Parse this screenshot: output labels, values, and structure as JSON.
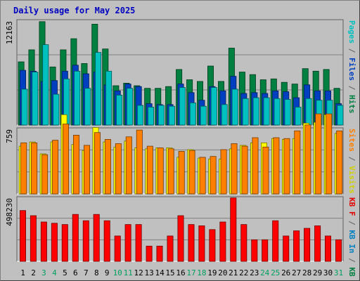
{
  "chart_data": [
    {
      "type": "bar",
      "title": "Daily usage for May 2025",
      "ymax_label": "12163",
      "right_label": [
        {
          "text": "Pages",
          "color": "#00c0c0"
        },
        {
          "text": " / ",
          "color": "#606060"
        },
        {
          "text": "Files",
          "color": "#0040c0"
        },
        {
          "text": " / ",
          "color": "#606060"
        },
        {
          "text": "Hits",
          "color": "#008040"
        }
      ],
      "categories": [
        "1",
        "2",
        "3",
        "4",
        "5",
        "6",
        "7",
        "8",
        "9",
        "10",
        "11",
        "12",
        "13",
        "14",
        "15",
        "16",
        "17",
        "18",
        "19",
        "20",
        "21",
        "22",
        "23",
        "24",
        "25",
        "26",
        "27",
        "28",
        "29",
        "30",
        "31"
      ],
      "weekend_days": [
        3,
        4,
        10,
        11,
        17,
        18,
        24,
        25,
        31
      ],
      "series": [
        {
          "name": "Hits",
          "color": "#008040",
          "values": [
            7400,
            8800,
            12100,
            6800,
            8800,
            10100,
            7200,
            11800,
            8900,
            4600,
            4900,
            4600,
            4300,
            4300,
            4500,
            6500,
            5300,
            5100,
            6900,
            5100,
            9000,
            6200,
            5900,
            5300,
            5400,
            5000,
            4800,
            6600,
            6300,
            6500,
            4300
          ]
        },
        {
          "name": "Files",
          "color": "#0040c0",
          "values": [
            6400,
            6300,
            5100,
            5200,
            6300,
            7000,
            6000,
            6200,
            4700,
            4000,
            4800,
            4500,
            2500,
            2400,
            2400,
            4800,
            3800,
            2900,
            4500,
            4000,
            5700,
            3700,
            3800,
            3700,
            4000,
            3900,
            3200,
            4700,
            4000,
            4000,
            2500
          ]
        },
        {
          "name": "Pages",
          "color": "#00c0c0",
          "values": [
            4200,
            6200,
            9400,
            3600,
            5400,
            6300,
            4300,
            8500,
            6300,
            3500,
            4300,
            2300,
            2100,
            2300,
            2200,
            4400,
            2600,
            2200,
            4400,
            2400,
            4200,
            3100,
            3200,
            3200,
            3100,
            3000,
            2100,
            3100,
            2900,
            2900,
            2300
          ]
        }
      ]
    },
    {
      "type": "bar",
      "ymax_label": "759",
      "right_label": [
        {
          "text": "Sites",
          "color": "#ff8000"
        },
        {
          "text": " / ",
          "color": "#606060"
        },
        {
          "text": "Visits",
          "color": "#d0d000"
        }
      ],
      "series": [
        {
          "name": "Visits",
          "color": "#ffff00",
          "values": [
            560,
            610,
            470,
            610,
            930,
            580,
            510,
            780,
            610,
            550,
            620,
            540,
            530,
            540,
            540,
            430,
            520,
            420,
            410,
            410,
            530,
            570,
            600,
            600,
            650,
            640,
            650,
            830,
            840,
            930,
            710
          ]
        },
        {
          "name": "Sites",
          "color": "#ff8000",
          "values": [
            600,
            600,
            460,
            630,
            820,
            690,
            570,
            720,
            640,
            590,
            670,
            750,
            560,
            540,
            530,
            500,
            510,
            430,
            440,
            520,
            590,
            560,
            660,
            550,
            660,
            650,
            740,
            810,
            940,
            940,
            740
          ]
        }
      ]
    },
    {
      "type": "bar",
      "ymax_label": "498230",
      "right_label": [
        {
          "text": "KB F",
          "color": "#e00000"
        },
        {
          "text": " / ",
          "color": "#606060"
        },
        {
          "text": "KB In",
          "color": "#0080c0"
        },
        {
          "text": " / ",
          "color": "#606060"
        },
        {
          "text": "KB Out",
          "color": "#008040"
        }
      ],
      "series": [
        {
          "name": "KB F",
          "color": "#ff0000",
          "values": [
            400000,
            360000,
            310000,
            300000,
            290000,
            370000,
            320000,
            370000,
            320000,
            200000,
            290000,
            290000,
            120000,
            120000,
            200000,
            360000,
            290000,
            280000,
            250000,
            310000,
            500000,
            290000,
            170000,
            170000,
            320000,
            200000,
            240000,
            260000,
            280000,
            200000,
            170000
          ]
        }
      ]
    }
  ]
}
